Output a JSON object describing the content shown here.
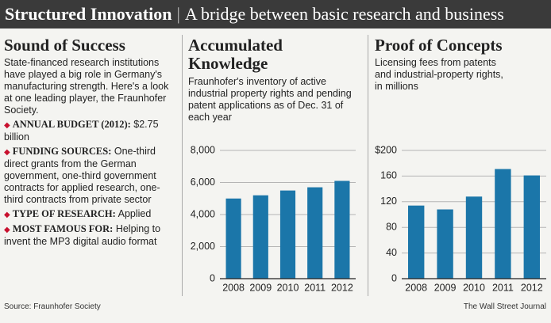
{
  "header": {
    "title": "Structured Innovation",
    "subtitle": "A bridge between basic research and business"
  },
  "sidebar": {
    "title": "Sound of Success",
    "intro": "State-financed research institutions have played a big role in Germany's manufacturing strength. Here's a look at one leading player, the Fraunhofer Society.",
    "items": [
      {
        "label": "ANNUAL BUDGET (2012):",
        "text": "$2.75 billion"
      },
      {
        "label": "FUNDING SOURCES:",
        "text": "One-third direct grants from the German government, one-third government contracts for applied research, one-third contracts from private sector"
      },
      {
        "label": "TYPE OF RESEARCH:",
        "text": "Applied"
      },
      {
        "label": "MOST FAMOUS FOR:",
        "text": "Helping to invent the MP3 digital audio format"
      }
    ]
  },
  "footer": {
    "source": "Source: Fraunhofer Society",
    "credit": "The Wall Street Journal"
  },
  "chart_data": [
    {
      "type": "bar",
      "title": "Accumulated Knowledge",
      "subtitle": "Fraunhofer's inventory of active industrial property rights and pending patent applications as of Dec. 31 of each year",
      "categories": [
        "2008",
        "2009",
        "2010",
        "2011",
        "2012"
      ],
      "values": [
        5000,
        5200,
        5500,
        5700,
        6100
      ],
      "color": "#1b76a9",
      "ylim": [
        0,
        8000
      ],
      "yticks": [
        0,
        {
          "value": 2000,
          "label": "2,000"
        },
        {
          "value": 4000,
          "label": "4,000"
        },
        {
          "value": 6000,
          "label": "6,000"
        },
        {
          "value": 8000,
          "label": "8,000"
        }
      ],
      "grid": true
    },
    {
      "type": "bar",
      "title": "Proof of Concepts",
      "subtitle": "Licensing fees from patents and industrial-property rights, in millions",
      "categories": [
        "2008",
        "2009",
        "2010",
        "2011",
        "2012"
      ],
      "values": [
        114,
        108,
        128,
        171,
        161
      ],
      "color": "#1b76a9",
      "ylim": [
        0,
        200
      ],
      "yticks": [
        0,
        40,
        80,
        120,
        160,
        {
          "value": 200,
          "label": "$200"
        }
      ],
      "grid": true
    }
  ]
}
